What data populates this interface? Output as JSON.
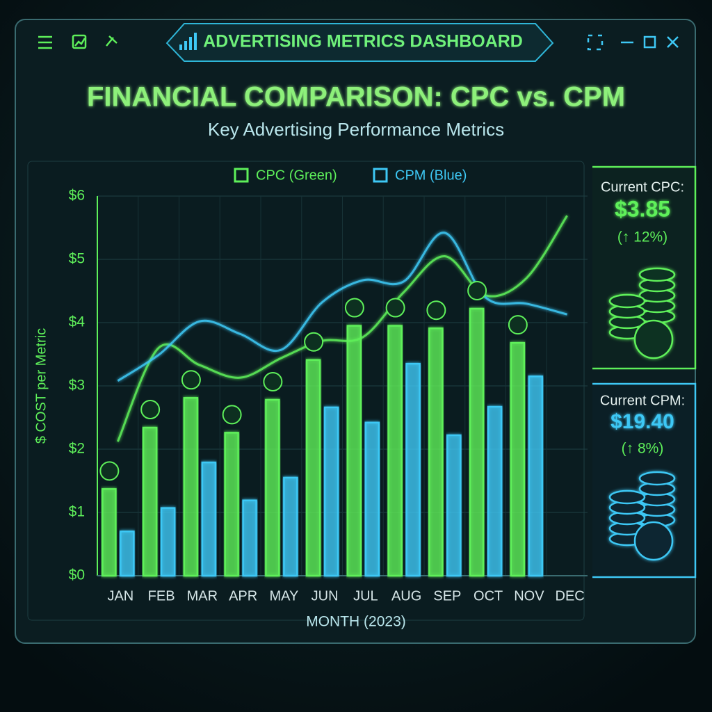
{
  "window": {
    "title": "ADVERTISING METRICS DASHBOARD"
  },
  "chart_data": {
    "type": "bar",
    "title": "FINANCIAL COMPARISON: CPC vs. CPM",
    "subtitle": "Key Advertising Performance Metrics",
    "y_label": "$ COST per Metric",
    "x_label": "MONTH (2023)",
    "categories": [
      "JAN",
      "FEB",
      "MAR",
      "APR",
      "MAY",
      "JUN",
      "JUL",
      "AUG",
      "SEP",
      "OCT",
      "NOV",
      "DEC"
    ],
    "series": [
      {
        "name": "CPC (Green)",
        "color": "#5ef05a",
        "values": [
          1.37,
          2.34,
          2.81,
          2.26,
          2.78,
          3.41,
          3.95,
          3.95,
          3.91,
          4.22,
          3.68,
          null
        ],
        "trend": [
          2.12,
          3.6,
          3.33,
          3.13,
          3.44,
          3.71,
          3.77,
          4.48,
          5.05,
          4.43,
          4.7,
          5.69
        ]
      },
      {
        "name": "CPM (Blue)",
        "color": "#3ec8f5",
        "values": [
          0.7,
          1.07,
          1.79,
          1.19,
          1.55,
          2.66,
          2.42,
          3.35,
          2.22,
          2.67,
          3.15,
          null
        ],
        "trend": [
          3.08,
          3.49,
          4.02,
          3.82,
          3.57,
          4.32,
          4.67,
          4.65,
          5.42,
          4.4,
          4.3,
          4.13
        ]
      }
    ],
    "ylim": [
      0,
      6
    ],
    "yticks": [
      {
        "value": 0,
        "label": "$0"
      },
      {
        "value": 1,
        "label": "$1"
      },
      {
        "value": 2,
        "label": "$2"
      },
      {
        "value": 3,
        "label": "$3"
      },
      {
        "value": 4,
        "label": "$4"
      },
      {
        "value": 5,
        "label": "$5"
      },
      {
        "value": 6,
        "label": "$6"
      }
    ],
    "grid": true,
    "legend": "top"
  },
  "side_panel": {
    "cards": [
      {
        "label": "Current CPC:",
        "value": "$3.85",
        "change": "(↑ 12%)",
        "color": "#5ef05a"
      },
      {
        "label": "Current CPM:",
        "value": "$19.40",
        "change": "(↑ 8%)",
        "color": "#3ec8f5"
      }
    ]
  }
}
